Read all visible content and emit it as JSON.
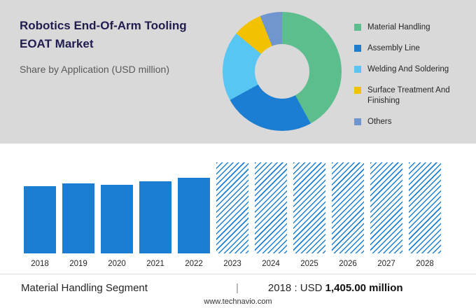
{
  "header": {
    "title_line1": "Robotics End-Of-Arm Tooling",
    "title_line2": "EOAT Market",
    "subtitle": "Share by Application (USD million)"
  },
  "legend": [
    {
      "label": "Material Handling",
      "color": "#5cbd8d"
    },
    {
      "label": "Assembly Line",
      "color": "#1b7ed3"
    },
    {
      "label": "Welding And Soldering",
      "color": "#58c6f2"
    },
    {
      "label": "Surface Treatment And Finishing",
      "color": "#f2c200"
    },
    {
      "label": "Others",
      "color": "#6f96ce"
    }
  ],
  "chart_data": [
    {
      "type": "pie",
      "subtype": "donut",
      "title": "Share by Application (USD million)",
      "labels": [
        "Material Handling",
        "Assembly Line",
        "Welding And Soldering",
        "Surface Treatment And Finishing",
        "Others"
      ],
      "values_pct": [
        42,
        25,
        19,
        8,
        6
      ],
      "colors": [
        "#5cbd8d",
        "#1b7ed3",
        "#58c6f2",
        "#f2c200",
        "#6f96ce"
      ],
      "legend_position": "right",
      "hole_color": "#d9d9d9"
    },
    {
      "type": "bar",
      "categories": [
        "2018",
        "2019",
        "2020",
        "2021",
        "2022",
        "2023",
        "2024",
        "2025",
        "2026",
        "2027",
        "2028"
      ],
      "values": [
        96,
        100,
        98,
        103,
        108,
        130,
        130,
        130,
        130,
        130,
        130
      ],
      "styles": [
        "solid",
        "solid",
        "solid",
        "solid",
        "solid",
        "hatched",
        "hatched",
        "hatched",
        "hatched",
        "hatched",
        "hatched"
      ],
      "bar_color": "#1b7ed3",
      "y_axis_visible": false,
      "units": "relative height (no y-axis shown)"
    }
  ],
  "footer": {
    "segment": "Material Handling Segment",
    "separator": "|",
    "value_prefix": "2018 : USD",
    "value_bold": "1,405.00 million",
    "website": "www.technavio.com"
  }
}
